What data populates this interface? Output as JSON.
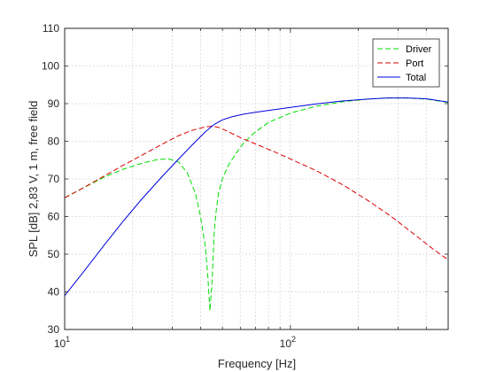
{
  "chart_data": {
    "type": "line",
    "title": "",
    "xlabel": "Frequency [Hz]",
    "ylabel": "SPL [dB] 2,83 V, 1 m, free field",
    "x_scale": "log",
    "xlim": [
      10,
      500
    ],
    "ylim": [
      30,
      110
    ],
    "x_ticks": [
      {
        "value": 10,
        "base": "10",
        "exp": "1"
      },
      {
        "value": 100,
        "base": "10",
        "exp": "2"
      }
    ],
    "y_ticks": [
      30,
      40,
      50,
      60,
      70,
      80,
      90,
      100,
      110
    ],
    "grid": true,
    "legend_position": "top-right",
    "series": [
      {
        "name": "Driver",
        "color": "#00dd00",
        "dash": "dashed",
        "x": [
          10,
          12,
          15,
          18,
          22,
          26,
          29,
          32,
          35,
          38,
          40,
          42,
          43,
          44,
          45,
          46,
          47,
          48,
          50,
          53,
          57,
          62,
          70,
          80,
          100,
          130,
          170,
          220,
          270,
          330,
          400,
          500
        ],
        "y": [
          65,
          67.5,
          70.5,
          72.5,
          74.2,
          75.2,
          75.3,
          74.5,
          71.5,
          66,
          60,
          52,
          45,
          35,
          43,
          56,
          62,
          66,
          70,
          73.5,
          76.5,
          79.5,
          82.5,
          85,
          87.5,
          89.3,
          90.5,
          91.2,
          91.5,
          91.5,
          91.2,
          90.3
        ]
      },
      {
        "name": "Port",
        "color": "#dd0000",
        "dash": "dashed",
        "x": [
          10,
          12,
          15,
          18,
          22,
          27,
          32,
          37,
          42,
          45,
          48,
          52,
          60,
          70,
          85,
          100,
          130,
          170,
          220,
          280,
          350,
          430,
          500
        ],
        "y": [
          65,
          67.5,
          70.8,
          73.5,
          76.3,
          79.2,
          81.5,
          83,
          83.8,
          84,
          83.7,
          82.8,
          81,
          79.3,
          77.2,
          75.3,
          72.2,
          68.5,
          64.3,
          60,
          55.5,
          51.3,
          48.5
        ]
      },
      {
        "name": "Total",
        "color": "#0000dd",
        "dash": "solid",
        "x": [
          10,
          12,
          15,
          18,
          22,
          27,
          32,
          37,
          42,
          46,
          50,
          55,
          62,
          70,
          85,
          100,
          130,
          170,
          220,
          270,
          330,
          400,
          500
        ],
        "y": [
          39,
          45,
          52.5,
          58.5,
          64.7,
          70.6,
          75.3,
          79.2,
          82.5,
          84.5,
          85.7,
          86.5,
          87.2,
          87.7,
          88.4,
          89,
          89.9,
          90.7,
          91.2,
          91.5,
          91.5,
          91.3,
          90.4
        ]
      }
    ]
  }
}
